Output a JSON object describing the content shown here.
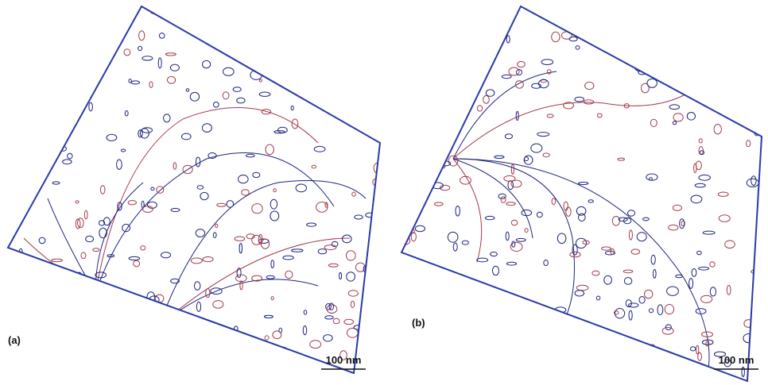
{
  "panels": [
    {
      "label": "(a)",
      "scale_bar": "100 nm"
    },
    {
      "label": "(b)",
      "scale_bar": "100 nm"
    }
  ]
}
